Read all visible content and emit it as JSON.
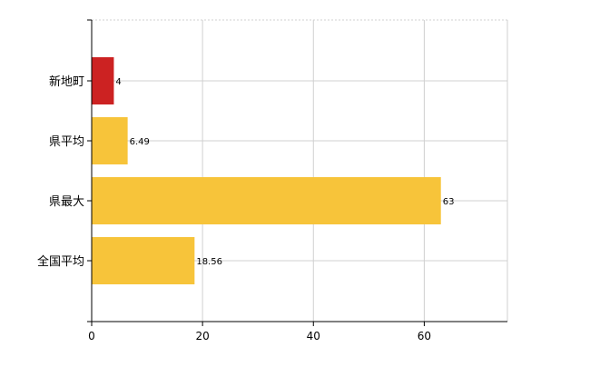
{
  "chart_data": {
    "type": "bar",
    "orientation": "horizontal",
    "categories": [
      "新地町",
      "県平均",
      "県最大",
      "全国平均"
    ],
    "values": [
      4,
      6.49,
      63,
      18.56
    ],
    "data_labels": [
      "4",
      "6.49",
      "63",
      "18.56"
    ],
    "bar_colors": [
      "#cc2222",
      "#f7c43a",
      "#f7c43a",
      "#f7c43a"
    ],
    "xlim": [
      0,
      75
    ],
    "x_ticks": [
      0,
      20,
      40,
      60
    ],
    "x_tick_labels": [
      "0",
      "20",
      "40",
      "60"
    ],
    "grid": true,
    "legend": "none",
    "title": "",
    "xlabel": "",
    "ylabel": ""
  }
}
